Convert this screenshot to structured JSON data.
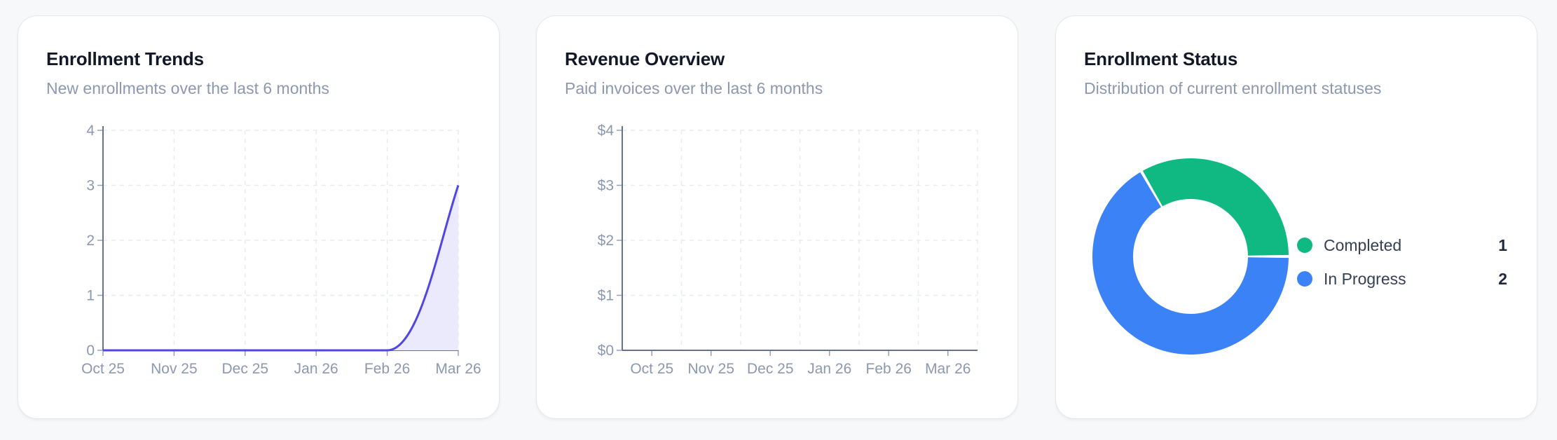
{
  "cards": [
    {
      "title": "Enrollment Trends",
      "subtitle": "New enrollments over the last 6 months"
    },
    {
      "title": "Revenue Overview",
      "subtitle": "Paid invoices over the last 6 months"
    },
    {
      "title": "Enrollment Status",
      "subtitle": "Distribution of current enrollment statuses"
    }
  ],
  "chart_data": [
    {
      "type": "area",
      "title": "Enrollment Trends",
      "subtitle": "New enrollments over the last 6 months",
      "categories": [
        "Oct 25",
        "Nov 25",
        "Dec 25",
        "Jan 26",
        "Feb 26",
        "Mar 26"
      ],
      "series": [
        {
          "values": [
            0,
            0,
            0,
            0,
            0,
            3
          ]
        }
      ],
      "ylim": [
        0,
        4
      ],
      "yticks": [
        "0",
        "1",
        "2",
        "3",
        "4"
      ],
      "grid": true,
      "color": "#4f46e5",
      "fill": "#ebe9fc"
    },
    {
      "type": "line",
      "title": "Revenue Overview",
      "subtitle": "Paid invoices over the last 6 months",
      "categories": [
        "Oct 25",
        "Nov 25",
        "Dec 25",
        "Jan 26",
        "Feb 26",
        "Mar 26"
      ],
      "series": [],
      "ylim": [
        0,
        4
      ],
      "yticks": [
        "$0",
        "$1",
        "$2",
        "$3",
        "$4"
      ],
      "grid": true
    },
    {
      "type": "pie",
      "title": "Enrollment Status",
      "subtitle": "Distribution of current enrollment statuses",
      "slices": [
        {
          "label": "Completed",
          "value": 1,
          "color": "#10b981"
        },
        {
          "label": "In Progress",
          "value": 2,
          "color": "#3b82f6"
        }
      ],
      "legend": "right"
    }
  ]
}
